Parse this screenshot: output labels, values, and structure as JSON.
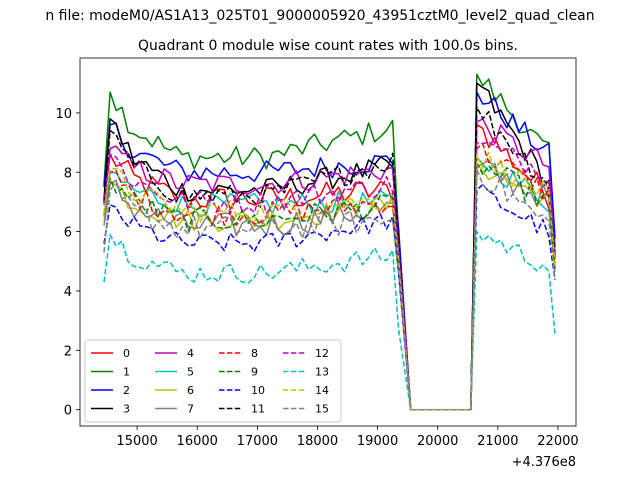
{
  "suptitle": "n file: modeM0/AS1A13_025T01_9000005920_43951cztM0_level2_quad_clean",
  "chart_data": {
    "type": "line",
    "title": "Quadrant 0 module wise count rates with 100.0s bins.",
    "xlabel": "",
    "ylabel": "",
    "x_offset_label": "+4.376e8",
    "xlim": [
      14050,
      22300
    ],
    "ylim": [
      -0.55,
      11.85
    ],
    "xticks": [
      15000,
      16000,
      17000,
      18000,
      19000,
      20000,
      21000,
      22000
    ],
    "yticks": [
      0,
      2,
      4,
      6,
      8,
      10
    ],
    "xtick_labels": [
      "15000",
      "16000",
      "17000",
      "18000",
      "19000",
      "20000",
      "21000",
      "22000"
    ],
    "ytick_labels": [
      "0",
      "2",
      "4",
      "6",
      "8",
      "10"
    ],
    "grid": false,
    "legend_position": "lower-left",
    "legend_columns": 4,
    "segments": {
      "seg1_start": 14450,
      "seg1_end": 19350,
      "gap_start": 19550,
      "gap_end": 20550,
      "seg2_start": 20650,
      "seg2_end": 21950,
      "bin": 100
    },
    "series": [
      {
        "name": "0",
        "color": "#ff0000",
        "dash": "solid",
        "start": 7.0,
        "peak": 8.6,
        "level": 7.1,
        "end_level": 7.4,
        "p2_start": 9.6,
        "p2_end": 7.2,
        "drop": 5.5,
        "noise": 0.45
      },
      {
        "name": "1",
        "color": "#008000",
        "dash": "solid",
        "start": 7.6,
        "peak": 10.7,
        "level": 8.5,
        "end_level": 9.5,
        "p2_start": 11.3,
        "p2_end": 8.6,
        "drop": 5.8,
        "noise": 0.4
      },
      {
        "name": "2",
        "color": "#0000ff",
        "dash": "solid",
        "start": 7.5,
        "peak": 9.6,
        "level": 8.0,
        "end_level": 8.4,
        "p2_start": 10.7,
        "p2_end": 8.6,
        "drop": 6.1,
        "noise": 0.4
      },
      {
        "name": "3",
        "color": "#000000",
        "dash": "solid",
        "start": 7.1,
        "peak": 9.8,
        "level": 7.4,
        "end_level": 8.2,
        "p2_start": 11.0,
        "p2_end": 7.6,
        "drop": 5.4,
        "noise": 0.4
      },
      {
        "name": "4",
        "color": "#bf00bf",
        "dash": "solid",
        "start": 7.0,
        "peak": 8.8,
        "level": 7.6,
        "end_level": 8.1,
        "p2_start": 9.7,
        "p2_end": 8.2,
        "drop": 5.5,
        "noise": 0.4
      },
      {
        "name": "5",
        "color": "#00bfbf",
        "dash": "solid",
        "start": 6.5,
        "peak": 8.0,
        "level": 6.9,
        "end_level": 7.0,
        "p2_start": 8.5,
        "p2_end": 7.0,
        "drop": 5.2,
        "noise": 0.4
      },
      {
        "name": "6",
        "color": "#bfbf00",
        "dash": "solid",
        "start": 6.3,
        "peak": 7.7,
        "level": 6.4,
        "end_level": 6.9,
        "p2_start": 8.3,
        "p2_end": 7.0,
        "drop": 5.0,
        "noise": 0.4
      },
      {
        "name": "7",
        "color": "#808080",
        "dash": "solid",
        "start": 6.2,
        "peak": 7.6,
        "level": 6.2,
        "end_level": 6.8,
        "p2_start": 8.2,
        "p2_end": 7.1,
        "drop": 4.9,
        "noise": 0.45
      },
      {
        "name": "8",
        "color": "#ff0000",
        "dash": "dashed",
        "start": 6.6,
        "peak": 8.0,
        "level": 6.6,
        "end_level": 7.0,
        "p2_start": 8.8,
        "p2_end": 7.3,
        "drop": 5.2,
        "noise": 0.4
      },
      {
        "name": "9",
        "color": "#008000",
        "dash": "dashed",
        "start": 6.6,
        "peak": 7.8,
        "level": 6.4,
        "end_level": 6.9,
        "p2_start": 8.3,
        "p2_end": 7.0,
        "drop": 5.0,
        "noise": 0.4
      },
      {
        "name": "10",
        "color": "#0000ff",
        "dash": "dashed",
        "start": 5.6,
        "peak": 6.9,
        "level": 5.6,
        "end_level": 6.4,
        "p2_start": 7.4,
        "p2_end": 6.0,
        "drop": 4.6,
        "noise": 0.35
      },
      {
        "name": "11",
        "color": "#000000",
        "dash": "dashed",
        "start": 7.0,
        "peak": 9.4,
        "level": 7.2,
        "end_level": 8.4,
        "p2_start": 10.2,
        "p2_end": 7.6,
        "drop": 5.6,
        "noise": 0.4
      },
      {
        "name": "12",
        "color": "#bf00bf",
        "dash": "dashed",
        "start": 6.9,
        "peak": 8.6,
        "level": 7.0,
        "end_level": 7.6,
        "p2_start": 9.0,
        "p2_end": 8.0,
        "drop": 5.4,
        "noise": 0.4
      },
      {
        "name": "13",
        "color": "#00bfbf",
        "dash": "dashed",
        "start": 4.3,
        "peak": 5.9,
        "level": 4.6,
        "end_level": 5.2,
        "p2_start": 6.0,
        "p2_end": 4.8,
        "drop": 2.7,
        "noise": 0.35
      },
      {
        "name": "14",
        "color": "#bfbf00",
        "dash": "dashed",
        "start": 6.6,
        "peak": 8.1,
        "level": 6.7,
        "end_level": 7.1,
        "p2_start": 8.6,
        "p2_end": 7.2,
        "drop": 5.1,
        "noise": 0.4
      },
      {
        "name": "15",
        "color": "#808080",
        "dash": "dashed",
        "start": 5.3,
        "peak": 7.4,
        "level": 6.1,
        "end_level": 6.4,
        "p2_start": 8.1,
        "p2_end": 6.2,
        "drop": 4.6,
        "noise": 0.45
      }
    ]
  }
}
